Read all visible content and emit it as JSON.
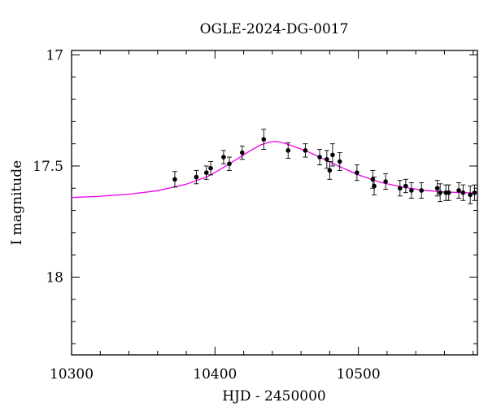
{
  "chart_data": {
    "type": "scatter",
    "title": "OGLE-2024-DG-0017",
    "xlabel": "HJD - 2450000",
    "ylabel": "I magnitude",
    "xlim": [
      10300,
      10583
    ],
    "ylim": [
      18.35,
      16.98
    ],
    "y_inverted": true,
    "grid": false,
    "x_ticks": [
      10300,
      10400,
      10500
    ],
    "x_tick_labels": [
      "10300",
      "10400",
      "10500"
    ],
    "y_ticks": [
      17,
      17.5,
      18
    ],
    "y_tick_labels": [
      "17",
      "17.5",
      "18"
    ],
    "series": [
      {
        "kind": "points_with_errorbars",
        "color": "#000000",
        "points": [
          {
            "x": 10372,
            "y": 17.56,
            "err": 0.035
          },
          {
            "x": 10387,
            "y": 17.55,
            "err": 0.03
          },
          {
            "x": 10394,
            "y": 17.53,
            "err": 0.03
          },
          {
            "x": 10397,
            "y": 17.51,
            "err": 0.03
          },
          {
            "x": 10406,
            "y": 17.46,
            "err": 0.03
          },
          {
            "x": 10410,
            "y": 17.49,
            "err": 0.03
          },
          {
            "x": 10419,
            "y": 17.44,
            "err": 0.03
          },
          {
            "x": 10434,
            "y": 17.38,
            "err": 0.045
          },
          {
            "x": 10451,
            "y": 17.43,
            "err": 0.035
          },
          {
            "x": 10463,
            "y": 17.43,
            "err": 0.03
          },
          {
            "x": 10473,
            "y": 17.46,
            "err": 0.035
          },
          {
            "x": 10478,
            "y": 17.47,
            "err": 0.04
          },
          {
            "x": 10480,
            "y": 17.52,
            "err": 0.04
          },
          {
            "x": 10482,
            "y": 17.45,
            "err": 0.05
          },
          {
            "x": 10487,
            "y": 17.48,
            "err": 0.04
          },
          {
            "x": 10499,
            "y": 17.53,
            "err": 0.035
          },
          {
            "x": 10510,
            "y": 17.56,
            "err": 0.04
          },
          {
            "x": 10511,
            "y": 17.59,
            "err": 0.04
          },
          {
            "x": 10519,
            "y": 17.57,
            "err": 0.035
          },
          {
            "x": 10529,
            "y": 17.6,
            "err": 0.035
          },
          {
            "x": 10533,
            "y": 17.59,
            "err": 0.03
          },
          {
            "x": 10537,
            "y": 17.61,
            "err": 0.035
          },
          {
            "x": 10544,
            "y": 17.61,
            "err": 0.035
          },
          {
            "x": 10555,
            "y": 17.6,
            "err": 0.035
          },
          {
            "x": 10557,
            "y": 17.62,
            "err": 0.04
          },
          {
            "x": 10561,
            "y": 17.62,
            "err": 0.035
          },
          {
            "x": 10563,
            "y": 17.62,
            "err": 0.035
          },
          {
            "x": 10570,
            "y": 17.61,
            "err": 0.035
          },
          {
            "x": 10573,
            "y": 17.62,
            "err": 0.035
          },
          {
            "x": 10578,
            "y": 17.63,
            "err": 0.04
          },
          {
            "x": 10581,
            "y": 17.62,
            "err": 0.035
          }
        ]
      },
      {
        "kind": "model_curve",
        "color": "#ee00ee",
        "x": [
          10300,
          10320,
          10340,
          10360,
          10380,
          10395,
          10405,
          10415,
          10425,
          10432,
          10438,
          10443,
          10448,
          10455,
          10465,
          10475,
          10485,
          10500,
          10515,
          10530,
          10545,
          10560,
          10583
        ],
        "y": [
          17.642,
          17.636,
          17.627,
          17.611,
          17.582,
          17.547,
          17.51,
          17.47,
          17.43,
          17.405,
          17.392,
          17.39,
          17.397,
          17.412,
          17.436,
          17.466,
          17.497,
          17.54,
          17.573,
          17.594,
          17.609,
          17.617,
          17.622
        ]
      }
    ]
  }
}
